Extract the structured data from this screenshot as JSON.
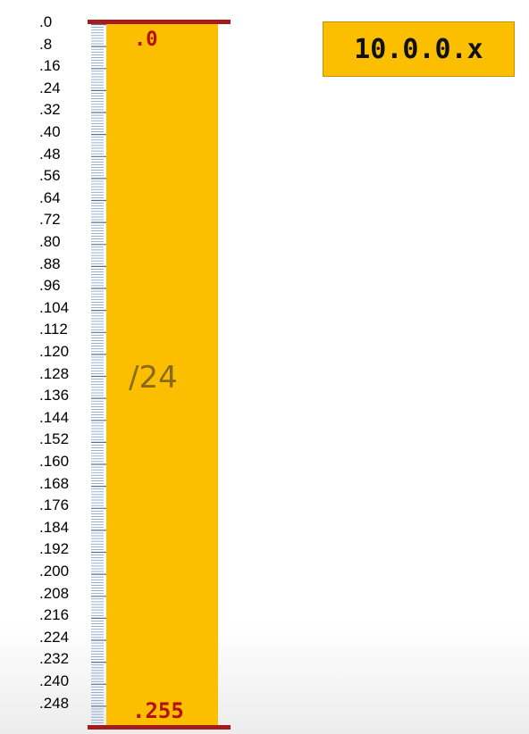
{
  "network": {
    "label": "10.0.0.x"
  },
  "block": {
    "start_label": ".0",
    "end_label": ".255",
    "prefix_label": "/24",
    "fill_color": "#fbbf00",
    "cap_color": "#a61c1c",
    "address_label_color": "#b80f0f"
  },
  "ruler": {
    "min": 0,
    "max": 256,
    "minor_step": 1,
    "major_step": 8,
    "color": "#7a9cc6"
  },
  "tick_labels": [
    ".0",
    ".8",
    ".16",
    ".24",
    ".32",
    ".40",
    ".48",
    ".56",
    ".64",
    ".72",
    ".80",
    ".88",
    ".96",
    ".104",
    ".112",
    ".120",
    ".128",
    ".136",
    ".144",
    ".152",
    ".160",
    ".168",
    ".176",
    ".184",
    ".192",
    ".200",
    ".208",
    ".216",
    ".224",
    ".232",
    ".240",
    ".248"
  ]
}
